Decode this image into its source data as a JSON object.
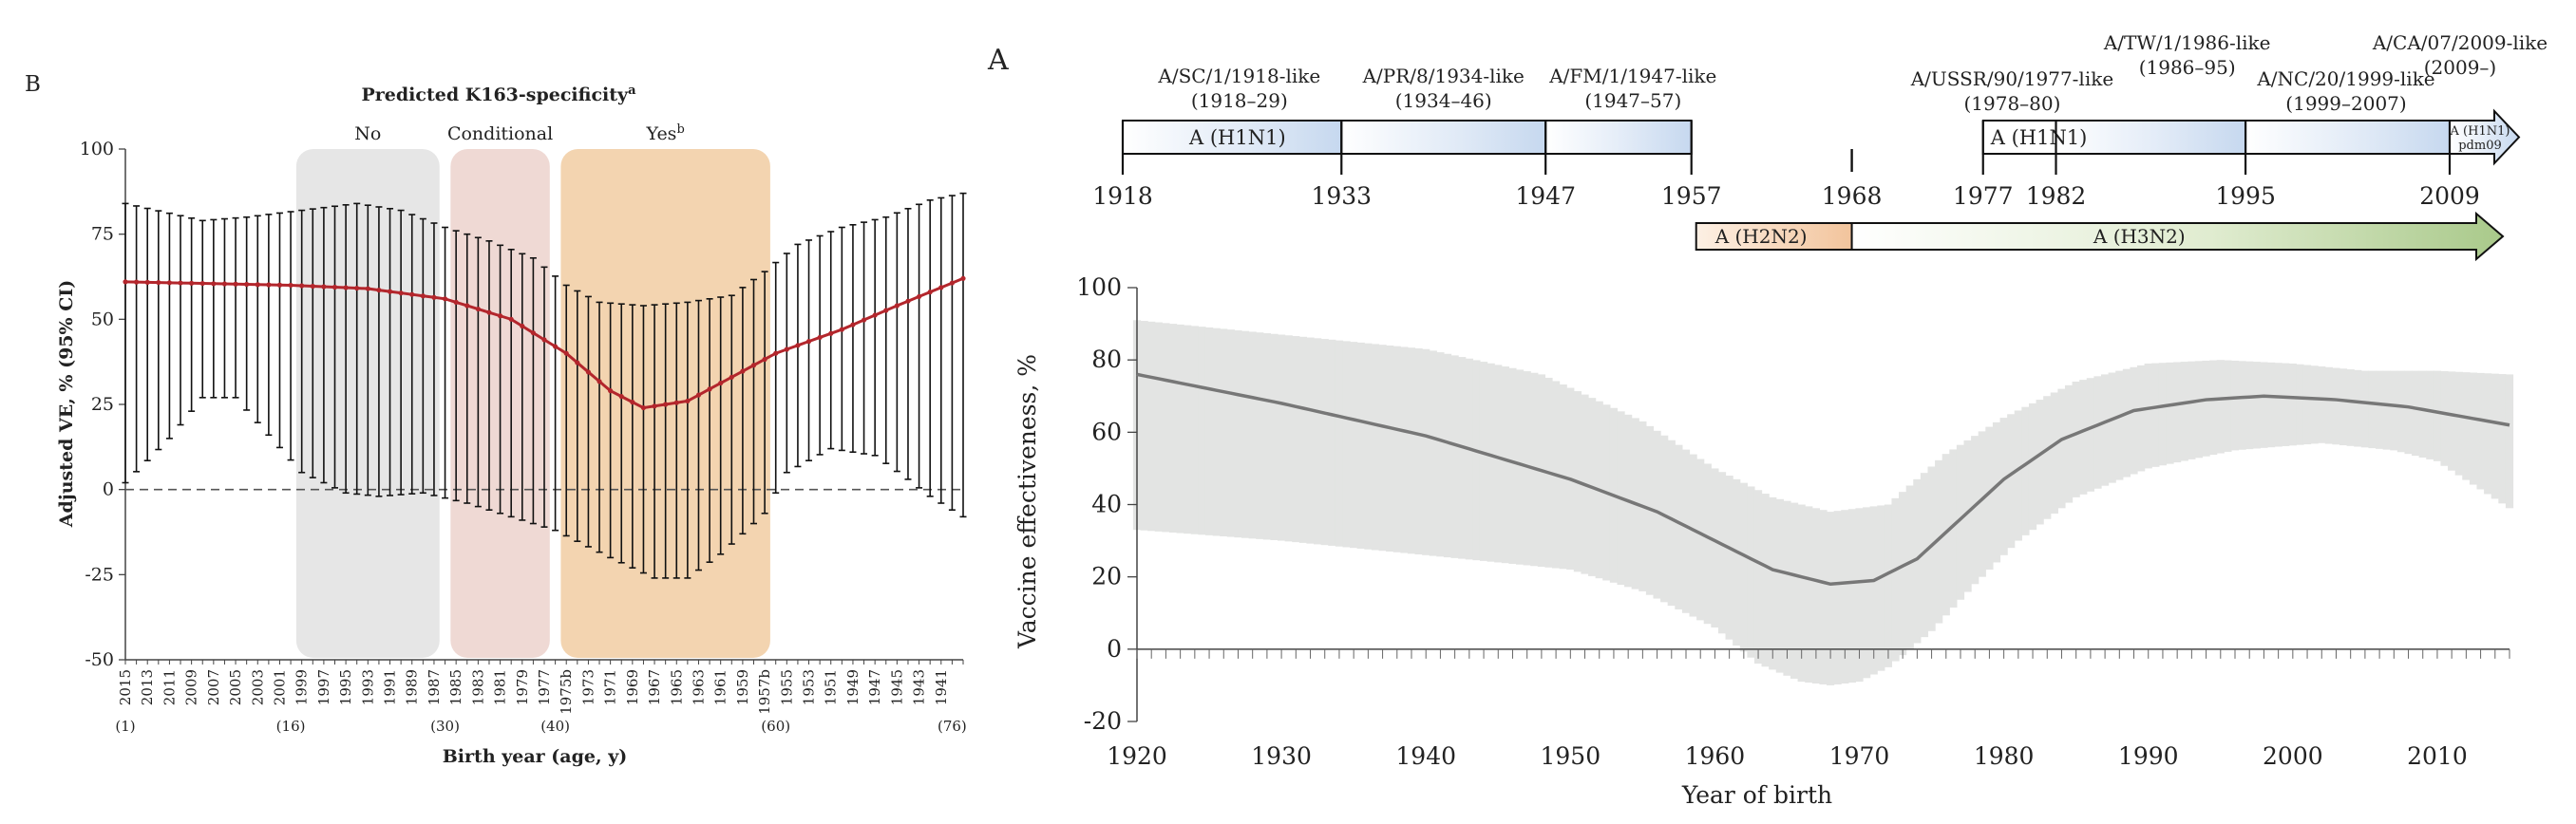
{
  "chart_data": [
    {
      "type": "line",
      "panel_label": "B",
      "title": "Predicted K163-specificity",
      "title_sup": "a",
      "ylabel": "Adjusted VE, % (95% CI)",
      "xlabel": "Birth year (age, y)",
      "ylim": [
        -50,
        100
      ],
      "yticks": [
        -50,
        -25,
        0,
        25,
        50,
        75,
        100
      ],
      "x_descending": true,
      "birth_years": [
        2015,
        2014,
        2013,
        2012,
        2011,
        2010,
        2009,
        2008,
        2007,
        2006,
        2005,
        2004,
        2003,
        2002,
        2001,
        2000,
        1999,
        1998,
        1997,
        1996,
        1995,
        1994,
        1993,
        1992,
        1991,
        1990,
        1989,
        1988,
        1987,
        1986,
        1985,
        1984,
        1983,
        1982,
        1981,
        1980,
        1979,
        1978,
        1977,
        1976,
        1975,
        1974,
        1973,
        1972,
        1971,
        1970,
        1969,
        1968,
        1967,
        1966,
        1965,
        1964,
        1963,
        1962,
        1961,
        1960,
        1959,
        1958,
        1957,
        1956,
        1955,
        1954,
        1953,
        1952,
        1951,
        1950,
        1949,
        1948,
        1947,
        1946,
        1945,
        1944,
        1943,
        1942,
        1941,
        1940,
        1939
      ],
      "tick_labels": [
        "2015",
        "2013",
        "2011",
        "2009",
        "2007",
        "2005",
        "2003",
        "2001",
        "1999",
        "1997",
        "1995",
        "1993",
        "1991",
        "1989",
        "1987",
        "1985",
        "1983",
        "1981",
        "1979",
        "1977",
        "1975b",
        "1973",
        "1971",
        "1969",
        "1967",
        "1965",
        "1963",
        "1961",
        "1959",
        "1957b",
        "1955",
        "1953",
        "1951",
        "1949",
        "1947",
        "1945",
        "1943",
        "1941"
      ],
      "age_labels": [
        {
          "year": 2015,
          "label": "(1)"
        },
        {
          "year": 2000,
          "label": "(16)"
        },
        {
          "year": 1986,
          "label": "(30)"
        },
        {
          "year": 1976,
          "label": "(40)"
        },
        {
          "year": 1956,
          "label": "(60)"
        },
        {
          "year": 1940,
          "label": "(76)"
        }
      ],
      "ve_anchors": [
        [
          2015,
          61
        ],
        [
          2000,
          60
        ],
        [
          1993,
          59
        ],
        [
          1986,
          56
        ],
        [
          1980,
          50
        ],
        [
          1975,
          40
        ],
        [
          1971,
          29
        ],
        [
          1968,
          24
        ],
        [
          1964,
          26
        ],
        [
          1960,
          33
        ],
        [
          1956,
          40
        ],
        [
          1950,
          47
        ],
        [
          1945,
          54
        ],
        [
          1939,
          62
        ]
      ],
      "lower_anchors": [
        [
          2015,
          2
        ],
        [
          2011,
          15
        ],
        [
          2008,
          27
        ],
        [
          2005,
          27
        ],
        [
          2002,
          16
        ],
        [
          1999,
          5
        ],
        [
          1995,
          -1
        ],
        [
          1992,
          -2
        ],
        [
          1988,
          -1
        ],
        [
          1984,
          -4
        ],
        [
          1980,
          -8
        ],
        [
          1976,
          -12
        ],
        [
          1971,
          -20
        ],
        [
          1967,
          -26
        ],
        [
          1964,
          -26
        ],
        [
          1961,
          -19
        ],
        [
          1957,
          -7
        ],
        [
          1955,
          5
        ],
        [
          1951,
          12
        ],
        [
          1947,
          10
        ],
        [
          1944,
          3
        ],
        [
          1942,
          -2
        ],
        [
          1939,
          -8
        ]
      ],
      "upper_anchors": [
        [
          2015,
          84
        ],
        [
          2008,
          79
        ],
        [
          2004,
          80
        ],
        [
          1999,
          82
        ],
        [
          1994,
          84
        ],
        [
          1990,
          82
        ],
        [
          1986,
          77
        ],
        [
          1982,
          73
        ],
        [
          1978,
          68
        ],
        [
          1975,
          60
        ],
        [
          1972,
          55
        ],
        [
          1968,
          54
        ],
        [
          1964,
          55
        ],
        [
          1960,
          57
        ],
        [
          1957,
          64
        ],
        [
          1954,
          72
        ],
        [
          1950,
          77
        ],
        [
          1946,
          80
        ],
        [
          1942,
          85
        ],
        [
          1939,
          87
        ]
      ],
      "regions": [
        {
          "label": "No",
          "from": 1999,
          "to": 1987,
          "color": "#e6e6e6"
        },
        {
          "label": "Conditional",
          "from": 1985,
          "to": 1977,
          "color": "#efd9d4"
        },
        {
          "label": "Yes",
          "label_sup": "b",
          "from": 1975,
          "to": 1957,
          "color": "#f3d4b0"
        }
      ],
      "reference_line": 0
    },
    {
      "type": "area",
      "panel_label": "A",
      "ylabel": "Vaccine effectiveness, %",
      "xlabel": "Year of birth",
      "xlim": [
        1920,
        2015
      ],
      "ylim": [
        -20,
        100
      ],
      "xticks": [
        1920,
        1930,
        1940,
        1950,
        1960,
        1970,
        1980,
        1990,
        2000,
        2010
      ],
      "yticks": [
        -20,
        0,
        20,
        40,
        60,
        80,
        100
      ],
      "ve": [
        [
          1920,
          76
        ],
        [
          1930,
          68
        ],
        [
          1940,
          59
        ],
        [
          1950,
          47
        ],
        [
          1956,
          38
        ],
        [
          1960,
          30
        ],
        [
          1964,
          22
        ],
        [
          1968,
          18
        ],
        [
          1971,
          19
        ],
        [
          1974,
          25
        ],
        [
          1977,
          36
        ],
        [
          1980,
          47
        ],
        [
          1984,
          58
        ],
        [
          1989,
          66
        ],
        [
          1994,
          69
        ],
        [
          1998,
          70
        ],
        [
          2003,
          69
        ],
        [
          2008,
          67
        ],
        [
          2015,
          62
        ]
      ],
      "lower": [
        [
          1920,
          33
        ],
        [
          1930,
          30
        ],
        [
          1940,
          26
        ],
        [
          1950,
          22
        ],
        [
          1955,
          16
        ],
        [
          1960,
          6
        ],
        [
          1963,
          -4
        ],
        [
          1966,
          -9
        ],
        [
          1968,
          -10
        ],
        [
          1970,
          -9
        ],
        [
          1972,
          -5
        ],
        [
          1975,
          5
        ],
        [
          1978,
          18
        ],
        [
          1981,
          30
        ],
        [
          1985,
          42
        ],
        [
          1990,
          50
        ],
        [
          1996,
          55
        ],
        [
          2002,
          57
        ],
        [
          2007,
          55
        ],
        [
          2010,
          52
        ],
        [
          2015,
          39
        ]
      ],
      "upper": [
        [
          1920,
          91
        ],
        [
          1930,
          87
        ],
        [
          1940,
          83
        ],
        [
          1948,
          76
        ],
        [
          1955,
          63
        ],
        [
          1960,
          50
        ],
        [
          1964,
          42
        ],
        [
          1968,
          38
        ],
        [
          1972,
          40
        ],
        [
          1976,
          54
        ],
        [
          1980,
          64
        ],
        [
          1985,
          74
        ],
        [
          1990,
          79
        ],
        [
          1995,
          80
        ],
        [
          2000,
          79
        ],
        [
          2005,
          77
        ],
        [
          2010,
          77
        ],
        [
          2015,
          76
        ]
      ],
      "timeline": {
        "tick_years": [
          1918,
          1933,
          1947,
          1957,
          1968,
          1977,
          1982,
          1995,
          2009
        ],
        "tick_labels": [
          "1918",
          "1933",
          "1947",
          "1957",
          "1968",
          "1977",
          "1982",
          "1995",
          "2009"
        ],
        "h1n1_bar1": {
          "label": "A (H1N1)",
          "from": 1918,
          "to": 1957
        },
        "h1n1_bar2": {
          "label": "A (H1N1)",
          "from": 1977,
          "to": 2015
        },
        "pdm_label_line1": "A (H1N1)",
        "pdm_label_line2": "pdm09",
        "h2n2_bar": {
          "label": "A (H2N2)",
          "from": 1957,
          "to": 1968
        },
        "h3n2_bar": {
          "label": "A (H3N2)",
          "from": 1968,
          "to": 2015
        },
        "strains": [
          {
            "name": "A/SC/1/1918-like",
            "period": "(1918–29)",
            "center": 1926
          },
          {
            "name": "A/PR/8/1934-like",
            "period": "(1934–46)",
            "center": 1940
          },
          {
            "name": "A/FM/1/1947-like",
            "period": "(1947–57)",
            "center": 1953
          },
          {
            "name": "A/USSR/90/1977-like",
            "period": "(1978–80)",
            "center": 1979
          },
          {
            "name": "A/TW/1/1986-like",
            "period": "(1986–95)",
            "center": 1991
          },
          {
            "name": "A/NC/20/1999-like",
            "period": "(1999–2007)",
            "center": 2004
          },
          {
            "name": "A/CA/07/2009-like",
            "period": "(2009–)",
            "center": 2014
          }
        ]
      }
    }
  ]
}
